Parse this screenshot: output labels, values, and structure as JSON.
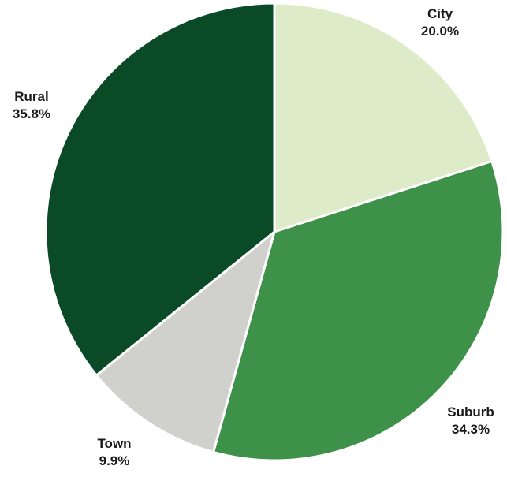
{
  "chart_data": {
    "type": "pie",
    "title": "",
    "slices": [
      {
        "label": "City",
        "value": 20.0,
        "display": "20.0%",
        "color": "#deebc9"
      },
      {
        "label": "Suburb",
        "value": 34.3,
        "display": "34.3%",
        "color": "#3e9148"
      },
      {
        "label": "Town",
        "value": 9.9,
        "display": "9.9%",
        "color": "#d0d0cc"
      },
      {
        "label": "Rural",
        "value": 35.8,
        "display": "35.8%",
        "color": "#0b4a27"
      }
    ],
    "start_angle": "12 o'clock",
    "direction": "clockwise",
    "legend": "none"
  }
}
